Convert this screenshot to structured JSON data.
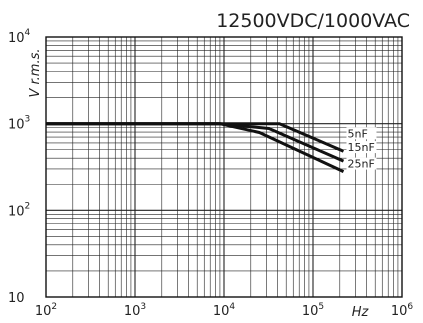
{
  "chart_data": {
    "type": "line",
    "title": "12500VDC/1000VAC",
    "xlabel": "Hz",
    "ylabel": "V r.m.s.",
    "xscale": "log",
    "yscale": "log",
    "xlim": [
      100,
      1000000
    ],
    "ylim": [
      10,
      10000
    ],
    "grid": true,
    "x_ticks": [
      {
        "base": "10",
        "exp": "2"
      },
      {
        "base": "10",
        "exp": "3"
      },
      {
        "base": "10",
        "exp": "4"
      },
      {
        "base": "10",
        "exp": "5"
      },
      {
        "base": "10",
        "exp": "6"
      }
    ],
    "y_ticks": [
      {
        "base": "10",
        "exp": "4"
      },
      {
        "base": "10",
        "exp": "3"
      },
      {
        "base": "10",
        "exp": "2"
      },
      {
        "base": "10",
        "exp": ""
      }
    ],
    "series": [
      {
        "name": "5nF",
        "x": [
          100,
          9000,
          42000,
          220000
        ],
        "y": [
          1000,
          1000,
          1000,
          480
        ]
      },
      {
        "name": "15nF",
        "x": [
          100,
          9000,
          32000,
          220000
        ],
        "y": [
          1000,
          1000,
          880,
          370
        ]
      },
      {
        "name": "25nF",
        "x": [
          100,
          9000,
          25000,
          220000
        ],
        "y": [
          1000,
          1000,
          790,
          280
        ]
      }
    ]
  }
}
